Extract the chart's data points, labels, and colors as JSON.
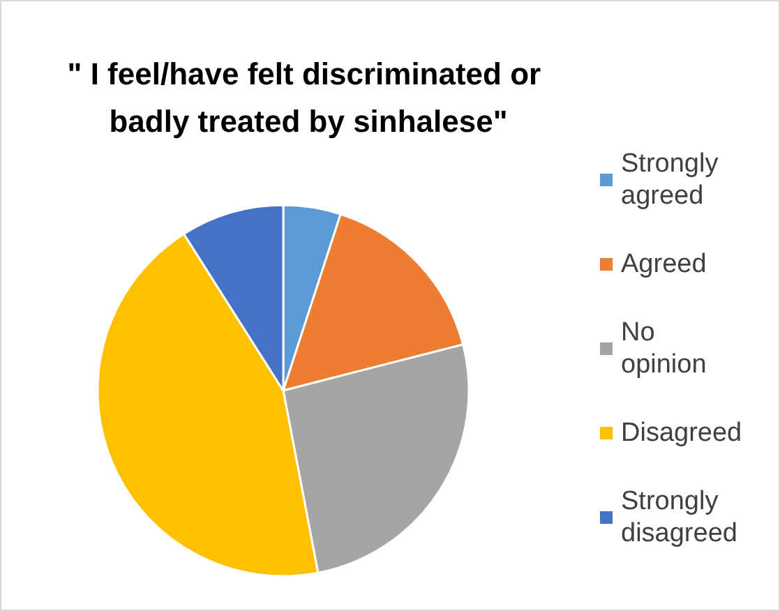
{
  "chart_data": {
    "type": "pie",
    "title": "\" I feel/have felt discriminated or badly treated by sinhalese\"",
    "categories": [
      "Strongly agreed",
      "Agreed",
      "No opinion",
      "Disagreed",
      "Strongly disagreed"
    ],
    "values": [
      5,
      16,
      26,
      44,
      9
    ],
    "colors": [
      "#5b9bd5",
      "#ed7d31",
      "#a5a5a5",
      "#ffc000",
      "#4472c4"
    ],
    "legend": "right"
  }
}
